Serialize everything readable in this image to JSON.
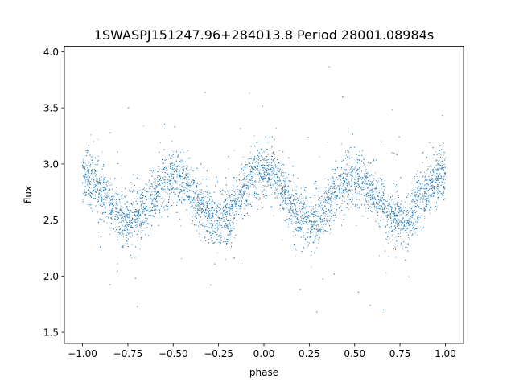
{
  "chart_data": {
    "type": "scatter",
    "title": "1SWASPJ151247.96+284013.8 Period 28001.08984s",
    "xlabel": "phase",
    "ylabel": "flux",
    "xlim": [
      -1.1,
      1.1
    ],
    "ylim": [
      1.4,
      4.05
    ],
    "x_ticks": [
      -1.0,
      -0.75,
      -0.5,
      -0.25,
      0.0,
      0.25,
      0.5,
      0.75,
      1.0
    ],
    "x_tick_labels": [
      "−1.00",
      "−0.75",
      "−0.50",
      "−0.25",
      "0.00",
      "0.25",
      "0.50",
      "0.75",
      "1.00"
    ],
    "y_ticks": [
      1.5,
      2.0,
      2.5,
      3.0,
      3.5,
      4.0
    ],
    "y_tick_labels": [
      "1.5",
      "2.0",
      "2.5",
      "3.0",
      "3.5",
      "4.0"
    ],
    "grid": false,
    "series": [
      {
        "color": "#1f77b4",
        "phase_range": [
          -1.0,
          1.0
        ],
        "description_points": [
          {
            "x": -1.0,
            "y": 2.9
          },
          {
            "x": -0.75,
            "y": 2.5
          },
          {
            "x": -0.5,
            "y": 2.88
          },
          {
            "x": -0.25,
            "y": 2.5
          },
          {
            "x": 0.0,
            "y": 2.95
          },
          {
            "x": 0.25,
            "y": 2.48
          },
          {
            "x": 0.5,
            "y": 2.88
          },
          {
            "x": 0.75,
            "y": 2.5
          },
          {
            "x": 1.0,
            "y": 2.9
          }
        ]
      }
    ]
  }
}
